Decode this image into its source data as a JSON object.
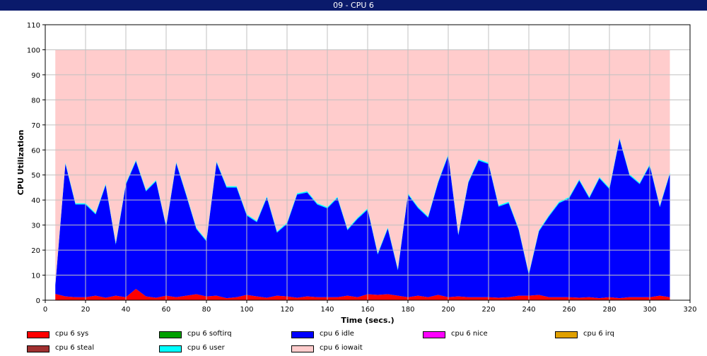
{
  "window": {
    "title": "09 - CPU 6"
  },
  "chart_data": {
    "type": "area",
    "title": "09 - CPU 6",
    "xlabel": "Time (secs.)",
    "ylabel": "CPU Utilization",
    "xlim": [
      0,
      320
    ],
    "ylim": [
      0,
      110
    ],
    "xticks": [
      0,
      20,
      40,
      60,
      80,
      100,
      120,
      140,
      160,
      180,
      200,
      220,
      240,
      260,
      280,
      300,
      320
    ],
    "yticks": [
      0,
      10,
      20,
      30,
      40,
      50,
      60,
      70,
      80,
      90,
      100,
      110
    ],
    "grid": true,
    "stacked": true,
    "legend_position": "bottom",
    "x": [
      5,
      10,
      15,
      20,
      25,
      30,
      35,
      40,
      45,
      50,
      55,
      60,
      65,
      70,
      75,
      80,
      85,
      90,
      95,
      100,
      105,
      110,
      115,
      120,
      125,
      130,
      135,
      140,
      145,
      150,
      155,
      160,
      165,
      170,
      175,
      180,
      185,
      190,
      195,
      200,
      205,
      210,
      215,
      220,
      225,
      230,
      235,
      240,
      245,
      250,
      255,
      260,
      265,
      270,
      275,
      280,
      285,
      290,
      295,
      300,
      305,
      310
    ],
    "series": [
      {
        "name": "cpu 6 sys",
        "color": "#ff0000",
        "values": [
          2.5,
          1.5,
          1.2,
          1.2,
          1.8,
          1.0,
          1.8,
          1.2,
          4.5,
          1.5,
          1.0,
          1.8,
          1.2,
          1.8,
          2.4,
          1.5,
          1.8,
          0.8,
          1.2,
          2.1,
          1.5,
          1.0,
          1.8,
          1.5,
          1.0,
          1.5,
          1.2,
          1.2,
          1.2,
          1.8,
          1.2,
          2.4,
          2.1,
          2.4,
          1.8,
          1.2,
          1.8,
          1.2,
          2.1,
          1.2,
          1.5,
          1.2,
          1.2,
          1.2,
          1.0,
          1.2,
          1.8,
          1.8,
          2.1,
          1.2,
          1.2,
          1.2,
          1.0,
          1.2,
          0.8,
          1.2,
          0.8,
          1.2,
          1.2,
          1.2,
          1.8,
          1.2
        ]
      },
      {
        "name": "cpu 6 softirq",
        "color": "#00a000",
        "values": [
          0,
          0,
          0,
          0,
          0,
          0,
          0,
          0,
          0,
          0,
          0,
          0,
          0,
          0,
          0,
          0,
          0,
          0,
          0,
          0,
          0,
          0,
          0,
          0,
          0,
          0,
          0,
          0,
          0,
          0,
          0,
          0,
          0,
          0,
          0,
          0,
          0,
          0,
          0,
          0,
          0,
          0,
          0,
          0,
          0,
          0,
          0,
          0,
          0,
          0,
          0,
          0,
          0,
          0,
          0,
          0,
          0,
          0,
          0,
          0,
          0,
          0
        ]
      },
      {
        "name": "cpu 6 idle",
        "color": "#0000ff",
        "values": [
          3.5,
          53.0,
          37.0,
          37.0,
          32.5,
          45.0,
          20.5,
          45.0,
          51.0,
          42.0,
          46.5,
          27.5,
          53.5,
          40.0,
          26.0,
          22.0,
          53.2,
          44.2,
          43.8,
          31.7,
          29.7,
          40.0,
          25.2,
          29.0,
          41.2,
          41.5,
          37.0,
          35.5,
          39.6,
          26.2,
          31.3,
          33.8,
          16.2,
          26.2,
          10.2,
          41.0,
          35.0,
          31.8,
          44.9,
          56.6,
          24.5,
          45.8,
          54.6,
          53.2,
          36.4,
          37.6,
          26.2,
          8.4,
          25.4,
          32.3,
          37.6,
          39.5,
          46.8,
          39.6,
          47.9,
          43.2,
          63.5,
          48.6,
          45.2,
          52.6,
          35.4,
          49.3
        ]
      },
      {
        "name": "cpu 6 nice",
        "color": "#ff00ff",
        "values": [
          0,
          0,
          0,
          0,
          0,
          0,
          0,
          0,
          0,
          0,
          0,
          0,
          0,
          0,
          0,
          0,
          0,
          0,
          0,
          0,
          0,
          0,
          0,
          0,
          0,
          0,
          0,
          0,
          0,
          0,
          0,
          0,
          0,
          0,
          0,
          0,
          0,
          0,
          0,
          0,
          0,
          0,
          0,
          0,
          0,
          0,
          0,
          0,
          0,
          0,
          0,
          0,
          0,
          0,
          0,
          0,
          0,
          0,
          0,
          0,
          0,
          0
        ]
      },
      {
        "name": "cpu 6 irq",
        "color": "#e0a000",
        "values": [
          0,
          0,
          0,
          0,
          0,
          0,
          0,
          0,
          0,
          0,
          0,
          0,
          0,
          0,
          0,
          0,
          0,
          0,
          0,
          0,
          0,
          0,
          0,
          0,
          0,
          0,
          0,
          0,
          0,
          0,
          0,
          0,
          0,
          0,
          0,
          0,
          0,
          0,
          0,
          0,
          0,
          0,
          0,
          0,
          0,
          0,
          0,
          0,
          0,
          0,
          0,
          0,
          0,
          0,
          0,
          0,
          0,
          0,
          0,
          0,
          0,
          0
        ]
      },
      {
        "name": "cpu 6 steal",
        "color": "#a03030",
        "values": [
          0,
          0,
          0,
          0,
          0,
          0,
          0,
          0,
          0,
          0,
          0,
          0,
          0,
          0,
          0,
          0,
          0,
          0,
          0,
          0,
          0,
          0,
          0,
          0,
          0,
          0,
          0,
          0,
          0,
          0,
          0,
          0,
          0,
          0,
          0,
          0,
          0,
          0,
          0,
          0,
          0,
          0,
          0,
          0,
          0,
          0,
          0,
          0,
          0,
          0,
          0,
          0,
          0,
          0,
          0,
          0,
          0,
          0,
          0,
          0,
          0,
          0
        ]
      },
      {
        "name": "cpu 6 user",
        "color": "#00ffff",
        "values": [
          0.3,
          0.5,
          0.5,
          0.5,
          0.5,
          0.5,
          0.5,
          0.5,
          0.5,
          0.5,
          0.5,
          0.5,
          0.5,
          0.5,
          0.5,
          0.5,
          0.5,
          0.5,
          0.5,
          0.5,
          0.5,
          0.5,
          0.5,
          0.5,
          0.5,
          0.5,
          0.5,
          0.5,
          0.5,
          0.5,
          0.5,
          0.5,
          0.5,
          0.5,
          0.5,
          0.5,
          0.5,
          0.5,
          0.5,
          0.5,
          0.5,
          0.5,
          0.5,
          0.5,
          0.5,
          0.5,
          0.5,
          0.5,
          0.5,
          0.5,
          0.5,
          0.5,
          0.5,
          0.5,
          0.5,
          0.5,
          0.5,
          0.5,
          0.5,
          0.5,
          0.5,
          0.5
        ]
      },
      {
        "name": "cpu 6 iowait",
        "color": "#ffcccc",
        "values": [
          93.7,
          45.0,
          61.3,
          61.3,
          65.2,
          53.5,
          77.2,
          53.3,
          44.0,
          56.0,
          52.0,
          70.2,
          44.8,
          57.7,
          71.1,
          76.0,
          44.5,
          54.5,
          54.5,
          65.7,
          68.3,
          58.5,
          72.5,
          69.0,
          57.3,
          56.5,
          61.3,
          62.8,
          58.7,
          71.5,
          67.0,
          63.3,
          81.2,
          70.9,
          87.5,
          57.3,
          62.7,
          66.5,
          52.5,
          41.7,
          73.5,
          52.5,
          43.7,
          45.1,
          62.1,
          60.7,
          71.5,
          89.3,
          72.0,
          66.0,
          60.7,
          58.8,
          51.7,
          58.7,
          50.8,
          55.1,
          35.2,
          49.7,
          53.1,
          45.7,
          62.3,
          49.0
        ]
      }
    ]
  }
}
